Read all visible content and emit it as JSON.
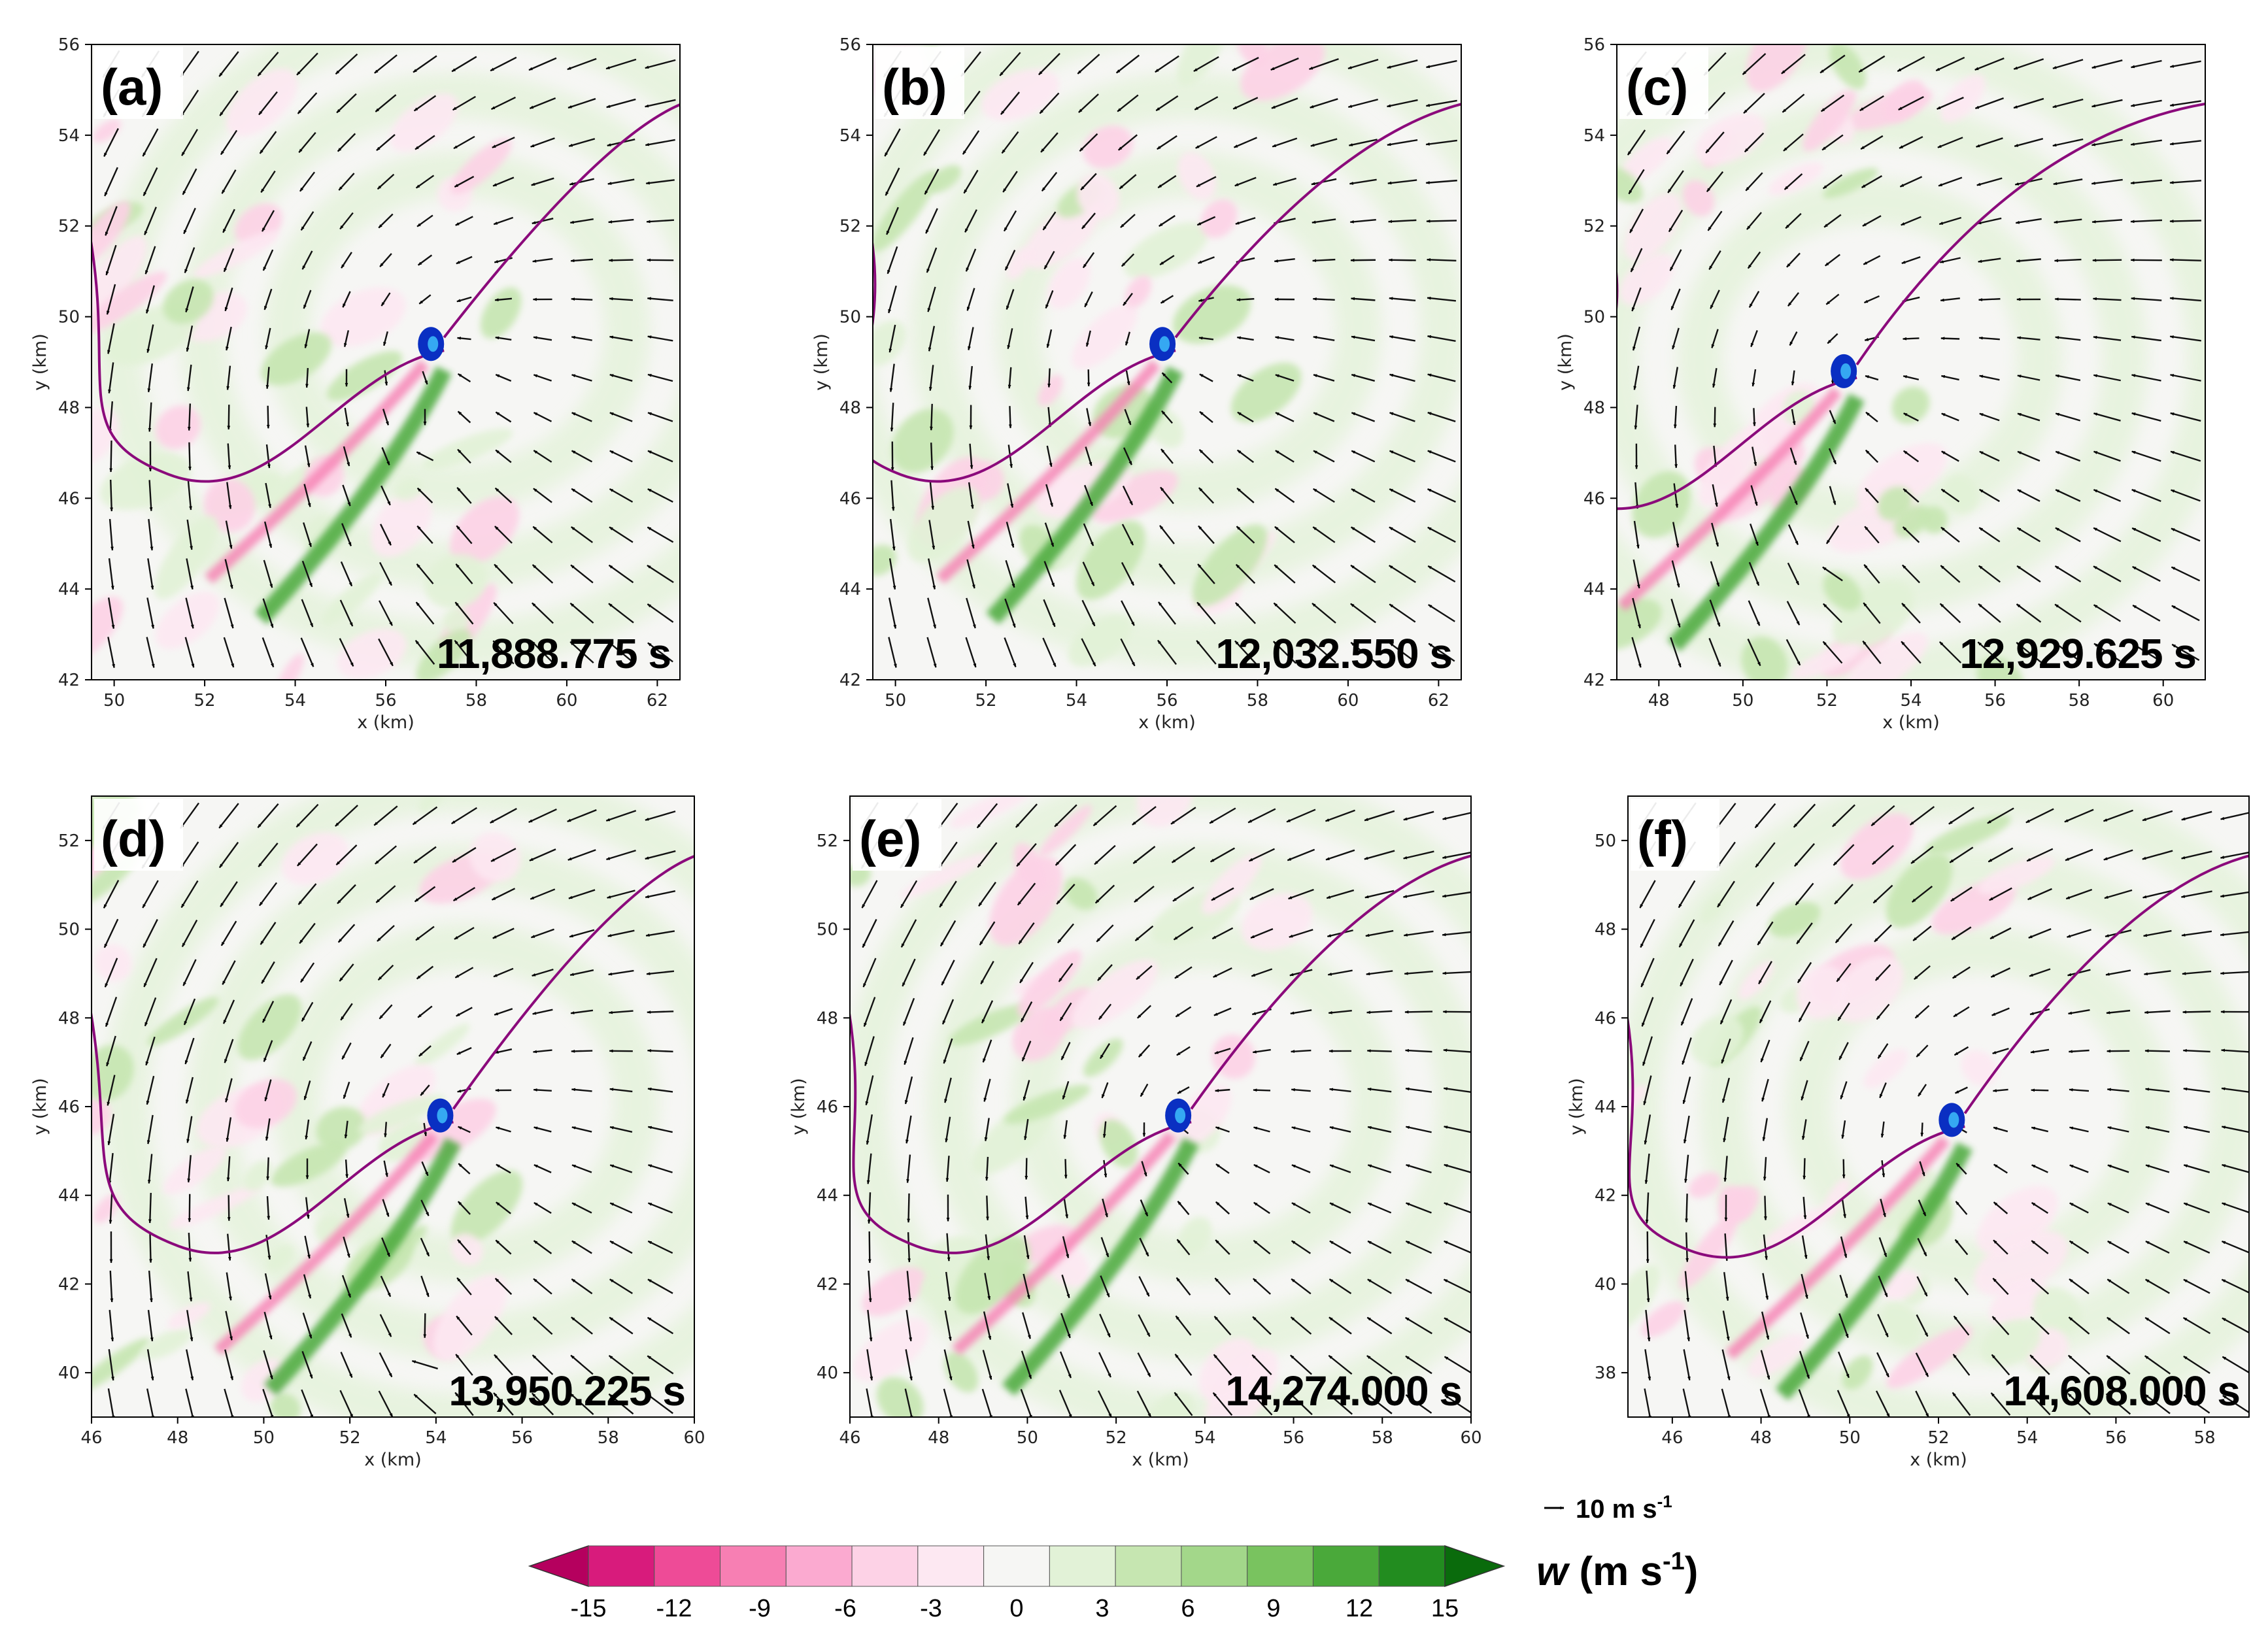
{
  "figure": {
    "reference_vector": {
      "value": "10",
      "unit": "m s",
      "exp": "-1"
    },
    "colorbar": {
      "label_var": "w",
      "label_unit": "(m s",
      "label_exp": "-1",
      "label_close": ")",
      "ticks": [
        "-15",
        "-12",
        "-9",
        "-6",
        "-3",
        "0",
        "3",
        "6",
        "9",
        "12",
        "15"
      ],
      "colors": [
        "#b5005e",
        "#d81b7c",
        "#ee4b97",
        "#f77fb3",
        "#fbaad0",
        "#fdd2e6",
        "#fde8f2",
        "#f6f6f4",
        "#e2f2d7",
        "#c6e6b1",
        "#a3d78a",
        "#79c35f",
        "#4aa93a",
        "#228c1f",
        "#0a6b0c"
      ],
      "extend": "both"
    }
  },
  "chart_data": [
    {
      "type": "contour+vector",
      "panel": "(a)",
      "time_label": "11,888.775 s",
      "xlabel": "x (km)",
      "ylabel": "y (km)",
      "xlim": [
        49.5,
        62.5
      ],
      "ylim": [
        42,
        56
      ],
      "xticks": [
        "50",
        "52",
        "54",
        "56",
        "58",
        "60",
        "62"
      ],
      "yticks": [
        "42",
        "44",
        "46",
        "48",
        "50",
        "52",
        "54",
        "56"
      ],
      "vortex_center": [
        57.0,
        49.4
      ]
    },
    {
      "type": "contour+vector",
      "panel": "(b)",
      "time_label": "12,032.550 s",
      "xlabel": "x (km)",
      "ylabel": "y (km)",
      "xlim": [
        49.5,
        62.5
      ],
      "ylim": [
        42,
        56
      ],
      "xticks": [
        "50",
        "52",
        "54",
        "56",
        "58",
        "60",
        "62"
      ],
      "yticks": [
        "42",
        "44",
        "46",
        "48",
        "50",
        "52",
        "54",
        "56"
      ],
      "vortex_center": [
        55.9,
        49.4
      ]
    },
    {
      "type": "contour+vector",
      "panel": "(c)",
      "time_label": "12,929.625 s",
      "xlabel": "x (km)",
      "ylabel": "y (km)",
      "xlim": [
        47,
        61
      ],
      "ylim": [
        42,
        56
      ],
      "xticks": [
        "48",
        "50",
        "52",
        "54",
        "56",
        "58",
        "60"
      ],
      "yticks": [
        "42",
        "44",
        "46",
        "48",
        "50",
        "52",
        "54",
        "56"
      ],
      "vortex_center": [
        52.4,
        48.8
      ]
    },
    {
      "type": "contour+vector",
      "panel": "(d)",
      "time_label": "13,950.225 s",
      "xlabel": "x (km)",
      "ylabel": "y (km)",
      "xlim": [
        46,
        60
      ],
      "ylim": [
        39,
        53
      ],
      "xticks": [
        "46",
        "48",
        "50",
        "52",
        "54",
        "56",
        "58",
        "60"
      ],
      "yticks": [
        "40",
        "42",
        "44",
        "46",
        "48",
        "50",
        "52"
      ],
      "vortex_center": [
        54.1,
        45.8
      ]
    },
    {
      "type": "contour+vector",
      "panel": "(e)",
      "time_label": "14,274.000 s",
      "xlabel": "x (km)",
      "ylabel": "y (km)",
      "xlim": [
        46,
        60
      ],
      "ylim": [
        39,
        53
      ],
      "xticks": [
        "46",
        "48",
        "50",
        "52",
        "54",
        "56",
        "58",
        "60"
      ],
      "yticks": [
        "40",
        "42",
        "44",
        "46",
        "48",
        "50",
        "52"
      ],
      "vortex_center": [
        53.4,
        45.8
      ]
    },
    {
      "type": "contour+vector",
      "panel": "(f)",
      "time_label": "14,608.000 s",
      "xlabel": "x (km)",
      "ylabel": "y (km)",
      "xlim": [
        45,
        59
      ],
      "ylim": [
        37,
        51
      ],
      "xticks": [
        "46",
        "48",
        "50",
        "52",
        "54",
        "56",
        "58"
      ],
      "yticks": [
        "38",
        "40",
        "42",
        "44",
        "46",
        "48",
        "50"
      ],
      "vortex_center": [
        52.3,
        43.7
      ]
    }
  ]
}
